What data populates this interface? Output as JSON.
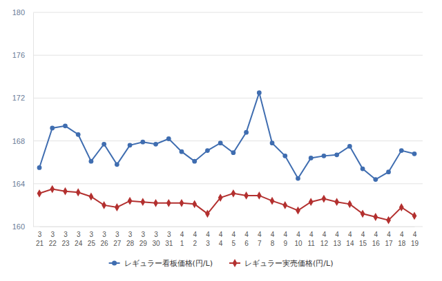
{
  "chart_data": {
    "type": "line",
    "categories": [
      "3\n21",
      "3\n22",
      "3\n23",
      "3\n24",
      "3\n25",
      "3\n26",
      "3\n27",
      "3\n28",
      "3\n29",
      "3\n30",
      "3\n31",
      "4\n1",
      "4\n2",
      "4\n3",
      "4\n4",
      "4\n5",
      "4\n6",
      "4\n7",
      "4\n8",
      "4\n9",
      "4\n10",
      "4\n11",
      "4\n12",
      "4\n13",
      "4\n14",
      "4\n15",
      "4\n16",
      "4\n17",
      "4\n18",
      "4\n19"
    ],
    "series": [
      {
        "name": "レギュラー看板価格(円/L)",
        "color": "#3f6db0",
        "marker": "circle",
        "values": [
          165.5,
          169.2,
          169.4,
          168.6,
          166.1,
          167.7,
          165.8,
          167.6,
          167.9,
          167.7,
          168.2,
          167.0,
          166.1,
          167.1,
          167.8,
          166.9,
          168.8,
          172.5,
          167.8,
          166.6,
          164.5,
          166.4,
          166.6,
          166.7,
          167.5,
          165.4,
          164.4,
          165.1,
          167.1,
          166.8
        ]
      },
      {
        "name": "レギュラー実売価格(円/L)",
        "color": "#b3302f",
        "marker": "diamond",
        "values": [
          163.1,
          163.5,
          163.3,
          163.2,
          162.8,
          162.0,
          161.8,
          162.4,
          162.3,
          162.2,
          162.2,
          162.2,
          162.1,
          161.2,
          162.7,
          163.1,
          162.9,
          162.9,
          162.4,
          162.0,
          161.5,
          162.3,
          162.6,
          162.3,
          162.1,
          161.2,
          160.9,
          160.6,
          161.8,
          161.0
        ]
      }
    ],
    "ylim": [
      160,
      180
    ],
    "yticks": [
      160,
      164,
      168,
      172,
      176,
      180
    ],
    "grid": true,
    "legend": "bottom"
  }
}
